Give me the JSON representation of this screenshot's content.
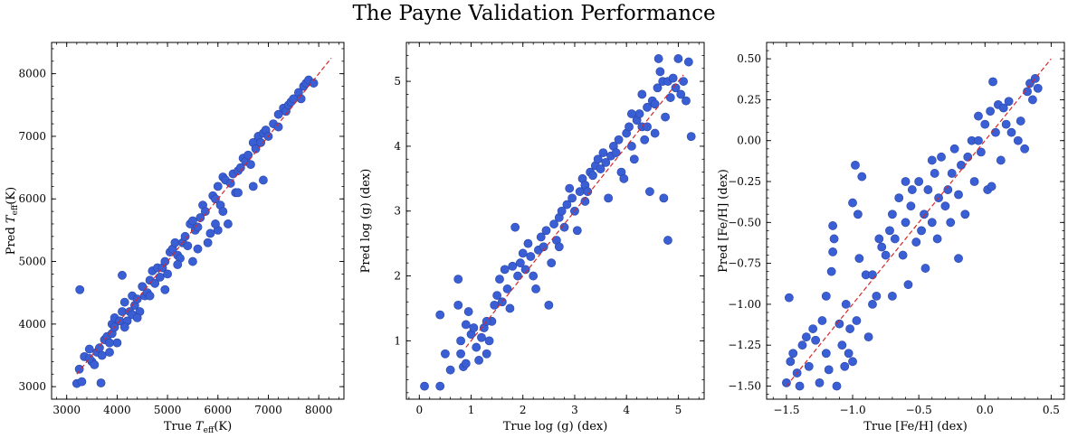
{
  "figure": {
    "title": "The Payne Validation Performance"
  },
  "colors": {
    "point": "#3a5fd4",
    "point_edge": "#2a45a8",
    "identity_line": "#d62728",
    "frame": "#000000"
  },
  "chart_data": [
    {
      "type": "scatter",
      "xlabel": "True T_eff(K)",
      "ylabel": "Pred T_eff(K)",
      "xlim": [
        2700,
        8500
      ],
      "ylim": [
        2800,
        8500
      ],
      "xticks": [
        3000,
        4000,
        5000,
        6000,
        7000,
        8000
      ],
      "yticks": [
        3000,
        4000,
        5000,
        6000,
        7000,
        8000
      ],
      "xtick_labels": [
        "3000",
        "4000",
        "5000",
        "6000",
        "7000",
        "8000"
      ],
      "ytick_labels": [
        "3000",
        "4000",
        "5000",
        "6000",
        "7000",
        "8000"
      ],
      "identity_line": [
        3200,
        8250
      ],
      "points": [
        [
          3200,
          3050
        ],
        [
          3300,
          3080
        ],
        [
          3250,
          3280
        ],
        [
          3350,
          3480
        ],
        [
          3260,
          4550
        ],
        [
          3450,
          3600
        ],
        [
          3500,
          3400
        ],
        [
          3550,
          3350
        ],
        [
          3600,
          3550
        ],
        [
          3650,
          3620
        ],
        [
          3680,
          3060
        ],
        [
          3700,
          3500
        ],
        [
          3750,
          3750
        ],
        [
          3800,
          3800
        ],
        [
          3850,
          3550
        ],
        [
          3900,
          4000
        ],
        [
          3950,
          4100
        ],
        [
          3900,
          3850
        ],
        [
          4000,
          3700
        ],
        [
          4050,
          4050
        ],
        [
          4100,
          4200
        ],
        [
          4100,
          4780
        ],
        [
          4150,
          4350
        ],
        [
          4200,
          4050
        ],
        [
          4250,
          4200
        ],
        [
          4300,
          4450
        ],
        [
          4350,
          4300
        ],
        [
          4400,
          4400
        ],
        [
          4450,
          4200
        ],
        [
          4500,
          4600
        ],
        [
          4550,
          4450
        ],
        [
          4600,
          4500
        ],
        [
          4650,
          4700
        ],
        [
          4700,
          4850
        ],
        [
          4750,
          4650
        ],
        [
          4800,
          4900
        ],
        [
          4850,
          4750
        ],
        [
          4900,
          4900
        ],
        [
          4950,
          5000
        ],
        [
          5000,
          4800
        ],
        [
          5050,
          5150
        ],
        [
          5100,
          5200
        ],
        [
          5150,
          5300
        ],
        [
          5200,
          5100
        ],
        [
          5250,
          5050
        ],
        [
          5300,
          5300
        ],
        [
          5350,
          5400
        ],
        [
          5400,
          5250
        ],
        [
          5450,
          5600
        ],
        [
          5500,
          5650
        ],
        [
          5550,
          5500
        ],
        [
          5600,
          5550
        ],
        [
          5650,
          5700
        ],
        [
          5700,
          5900
        ],
        [
          5750,
          5800
        ],
        [
          5800,
          5300
        ],
        [
          5850,
          5450
        ],
        [
          5900,
          6050
        ],
        [
          5950,
          6000
        ],
        [
          6000,
          6200
        ],
        [
          6050,
          5900
        ],
        [
          6100,
          6350
        ],
        [
          6150,
          6300
        ],
        [
          6200,
          5600
        ],
        [
          6250,
          6250
        ],
        [
          6300,
          6400
        ],
        [
          6350,
          6100
        ],
        [
          6400,
          6450
        ],
        [
          6450,
          6500
        ],
        [
          6500,
          6650
        ],
        [
          6550,
          6600
        ],
        [
          6600,
          6700
        ],
        [
          6650,
          6550
        ],
        [
          6700,
          6900
        ],
        [
          6750,
          6800
        ],
        [
          6800,
          7000
        ],
        [
          6850,
          6900
        ],
        [
          6900,
          7050
        ],
        [
          6950,
          7100
        ],
        [
          7000,
          7000
        ],
        [
          7100,
          7200
        ],
        [
          7200,
          7350
        ],
        [
          7300,
          7450
        ],
        [
          7350,
          7400
        ],
        [
          7400,
          7500
        ],
        [
          7450,
          7550
        ],
        [
          7500,
          7600
        ],
        [
          7600,
          7700
        ],
        [
          7700,
          7800
        ],
        [
          7750,
          7850
        ],
        [
          7800,
          7900
        ],
        [
          7900,
          7850
        ],
        [
          6900,
          6300
        ],
        [
          6000,
          5500
        ],
        [
          5500,
          5000
        ],
        [
          4950,
          4550
        ],
        [
          4150,
          3950
        ],
        [
          3850,
          3700
        ],
        [
          7200,
          7150
        ],
        [
          6700,
          6200
        ],
        [
          5200,
          4950
        ],
        [
          4300,
          4150
        ],
        [
          3450,
          3450
        ],
        [
          6100,
          5800
        ],
        [
          5600,
          5200
        ],
        [
          4650,
          4450
        ],
        [
          7650,
          7600
        ],
        [
          6400,
          6100
        ],
        [
          5950,
          5600
        ],
        [
          4400,
          4100
        ],
        [
          3950,
          3950
        ]
      ]
    },
    {
      "type": "scatter",
      "xlabel": "True log (g) (dex)",
      "ylabel": "Pred log (g) (dex)",
      "xlim": [
        -0.25,
        5.5
      ],
      "ylim": [
        0.1,
        5.6
      ],
      "xticks": [
        0,
        1,
        2,
        3,
        4,
        5
      ],
      "yticks": [
        1,
        2,
        3,
        4,
        5
      ],
      "xtick_labels": [
        "0",
        "1",
        "2",
        "3",
        "4",
        "5"
      ],
      "ytick_labels": [
        "1",
        "2",
        "3",
        "4",
        "5"
      ],
      "identity_line": [
        0.9,
        5.1
      ],
      "points": [
        [
          0.1,
          0.3
        ],
        [
          0.4,
          0.3
        ],
        [
          0.4,
          1.4
        ],
        [
          0.5,
          0.8
        ],
        [
          0.6,
          0.55
        ],
        [
          0.75,
          1.95
        ],
        [
          0.75,
          1.55
        ],
        [
          0.8,
          1.0
        ],
        [
          0.8,
          0.8
        ],
        [
          0.85,
          0.6
        ],
        [
          0.9,
          0.65
        ],
        [
          0.9,
          1.25
        ],
        [
          0.95,
          1.45
        ],
        [
          1.0,
          1.1
        ],
        [
          1.05,
          1.2
        ],
        [
          1.1,
          0.9
        ],
        [
          1.15,
          0.7
        ],
        [
          1.2,
          1.05
        ],
        [
          1.25,
          1.2
        ],
        [
          1.3,
          0.8
        ],
        [
          1.35,
          1.0
        ],
        [
          1.4,
          1.3
        ],
        [
          1.45,
          1.55
        ],
        [
          1.5,
          1.7
        ],
        [
          1.55,
          1.95
        ],
        [
          1.6,
          1.6
        ],
        [
          1.65,
          2.1
        ],
        [
          1.7,
          1.8
        ],
        [
          1.75,
          1.5
        ],
        [
          1.8,
          2.15
        ],
        [
          1.85,
          2.75
        ],
        [
          1.9,
          2.0
        ],
        [
          1.95,
          2.2
        ],
        [
          2.0,
          2.35
        ],
        [
          2.05,
          2.1
        ],
        [
          2.1,
          2.5
        ],
        [
          2.15,
          2.3
        ],
        [
          2.2,
          2.0
        ],
        [
          2.25,
          1.8
        ],
        [
          2.3,
          2.4
        ],
        [
          2.35,
          2.6
        ],
        [
          2.4,
          2.45
        ],
        [
          2.45,
          2.7
        ],
        [
          2.5,
          1.55
        ],
        [
          2.55,
          2.2
        ],
        [
          2.6,
          2.8
        ],
        [
          2.65,
          2.55
        ],
        [
          2.7,
          2.9
        ],
        [
          2.75,
          3.0
        ],
        [
          2.8,
          2.75
        ],
        [
          2.85,
          3.1
        ],
        [
          2.9,
          3.35
        ],
        [
          2.95,
          3.2
        ],
        [
          3.0,
          3.0
        ],
        [
          3.05,
          2.7
        ],
        [
          3.1,
          3.3
        ],
        [
          3.15,
          3.5
        ],
        [
          3.2,
          3.4
        ],
        [
          3.25,
          3.3
        ],
        [
          3.3,
          3.6
        ],
        [
          3.35,
          3.55
        ],
        [
          3.4,
          3.7
        ],
        [
          3.45,
          3.8
        ],
        [
          3.5,
          3.65
        ],
        [
          3.55,
          3.9
        ],
        [
          3.6,
          3.75
        ],
        [
          3.65,
          3.2
        ],
        [
          3.7,
          3.85
        ],
        [
          3.75,
          4.0
        ],
        [
          3.8,
          3.9
        ],
        [
          3.85,
          4.1
        ],
        [
          3.9,
          3.6
        ],
        [
          3.95,
          3.5
        ],
        [
          4.0,
          4.2
        ],
        [
          4.05,
          4.3
        ],
        [
          4.1,
          4.0
        ],
        [
          4.15,
          3.8
        ],
        [
          4.2,
          4.4
        ],
        [
          4.25,
          4.5
        ],
        [
          4.3,
          4.3
        ],
        [
          4.35,
          4.1
        ],
        [
          4.4,
          4.6
        ],
        [
          4.45,
          3.3
        ],
        [
          4.5,
          4.7
        ],
        [
          4.55,
          4.65
        ],
        [
          4.6,
          4.9
        ],
        [
          4.62,
          5.35
        ],
        [
          4.65,
          5.15
        ],
        [
          4.7,
          5.0
        ],
        [
          4.72,
          3.2
        ],
        [
          4.75,
          4.45
        ],
        [
          4.8,
          2.55
        ],
        [
          4.8,
          5.0
        ],
        [
          4.85,
          4.75
        ],
        [
          4.9,
          5.05
        ],
        [
          4.95,
          4.9
        ],
        [
          5.0,
          5.35
        ],
        [
          5.05,
          4.8
        ],
        [
          5.1,
          5.0
        ],
        [
          5.15,
          4.7
        ],
        [
          5.2,
          5.3
        ],
        [
          5.25,
          4.15
        ],
        [
          4.4,
          4.3
        ],
        [
          4.1,
          4.5
        ],
        [
          3.2,
          3.15
        ],
        [
          2.7,
          2.45
        ],
        [
          1.3,
          1.3
        ],
        [
          4.55,
          4.2
        ],
        [
          4.3,
          4.8
        ]
      ]
    },
    {
      "type": "scatter",
      "xlabel": "True [Fe/H] (dex)",
      "ylabel": "Pred [Fe/H] (dex)",
      "xlim": [
        -1.65,
        0.6
      ],
      "ylim": [
        -1.58,
        0.6
      ],
      "xticks": [
        -1.5,
        -1.0,
        -0.5,
        0.0,
        0.5
      ],
      "yticks": [
        -1.5,
        -1.25,
        -1.0,
        -0.75,
        -0.5,
        -0.25,
        0.0,
        0.25,
        0.5
      ],
      "xtick_labels": [
        "−1.5",
        "−1.0",
        "−0.5",
        "0.0",
        "0.5"
      ],
      "ytick_labels": [
        "−1.50",
        "−1.25",
        "−1.00",
        "−0.75",
        "−0.50",
        "−0.25",
        "0.00",
        "0.25",
        "0.50"
      ],
      "identity_line": [
        -1.5,
        0.5
      ],
      "points": [
        [
          -1.5,
          -1.48
        ],
        [
          -1.48,
          -0.96
        ],
        [
          -1.47,
          -1.35
        ],
        [
          -1.45,
          -1.3
        ],
        [
          -1.42,
          -1.42
        ],
        [
          -1.4,
          -1.5
        ],
        [
          -1.38,
          -1.25
        ],
        [
          -1.35,
          -1.2
        ],
        [
          -1.33,
          -1.38
        ],
        [
          -1.3,
          -1.15
        ],
        [
          -1.28,
          -1.22
        ],
        [
          -1.25,
          -1.48
        ],
        [
          -1.23,
          -1.1
        ],
        [
          -1.2,
          -1.3
        ],
        [
          -1.18,
          -1.4
        ],
        [
          -1.16,
          -0.8
        ],
        [
          -1.15,
          -0.52
        ],
        [
          -1.15,
          -0.68
        ],
        [
          -1.14,
          -0.6
        ],
        [
          -1.12,
          -1.5
        ],
        [
          -1.1,
          -1.12
        ],
        [
          -1.08,
          -1.25
        ],
        [
          -1.06,
          -1.38
        ],
        [
          -1.05,
          -1.0
        ],
        [
          -1.03,
          -1.3
        ],
        [
          -1.0,
          -1.35
        ],
        [
          -1.0,
          -0.38
        ],
        [
          -0.98,
          -0.15
        ],
        [
          -0.97,
          -1.1
        ],
        [
          -0.96,
          -0.45
        ],
        [
          -0.95,
          -0.72
        ],
        [
          -0.93,
          -0.22
        ],
        [
          -0.9,
          -0.82
        ],
        [
          -0.88,
          -1.2
        ],
        [
          -0.85,
          -0.82
        ],
        [
          -0.82,
          -0.95
        ],
        [
          -0.8,
          -0.6
        ],
        [
          -0.78,
          -0.65
        ],
        [
          -0.75,
          -0.7
        ],
        [
          -0.72,
          -0.55
        ],
        [
          -0.7,
          -0.45
        ],
        [
          -0.68,
          -0.6
        ],
        [
          -0.65,
          -0.35
        ],
        [
          -0.62,
          -0.7
        ],
        [
          -0.6,
          -0.5
        ],
        [
          -0.58,
          -0.88
        ],
        [
          -0.56,
          -0.4
        ],
        [
          -0.55,
          -0.3
        ],
        [
          -0.52,
          -0.62
        ],
        [
          -0.5,
          -0.25
        ],
        [
          -0.48,
          -0.55
        ],
        [
          -0.46,
          -0.45
        ],
        [
          -0.45,
          -0.78
        ],
        [
          -0.43,
          -0.3
        ],
        [
          -0.4,
          -0.5
        ],
        [
          -0.38,
          -0.2
        ],
        [
          -0.36,
          -0.6
        ],
        [
          -0.35,
          -0.35
        ],
        [
          -0.33,
          -0.1
        ],
        [
          -0.3,
          -0.4
        ],
        [
          -0.28,
          -0.3
        ],
        [
          -0.26,
          -0.5
        ],
        [
          -0.25,
          -0.2
        ],
        [
          -0.23,
          -0.05
        ],
        [
          -0.2,
          -0.33
        ],
        [
          -0.18,
          -0.15
        ],
        [
          -0.15,
          -0.45
        ],
        [
          -0.13,
          -0.1
        ],
        [
          -0.1,
          0.0
        ],
        [
          -0.08,
          -0.25
        ],
        [
          -0.05,
          0.15
        ],
        [
          -0.03,
          -0.07
        ],
        [
          0.0,
          0.1
        ],
        [
          0.02,
          -0.3
        ],
        [
          0.04,
          0.18
        ],
        [
          0.06,
          0.36
        ],
        [
          0.08,
          0.05
        ],
        [
          0.1,
          0.22
        ],
        [
          0.12,
          -0.12
        ],
        [
          0.14,
          0.2
        ],
        [
          0.16,
          0.1
        ],
        [
          0.18,
          0.24
        ],
        [
          0.2,
          0.05
        ],
        [
          0.25,
          0.0
        ],
        [
          0.27,
          0.12
        ],
        [
          0.3,
          -0.05
        ],
        [
          0.32,
          0.3
        ],
        [
          0.34,
          0.35
        ],
        [
          0.36,
          0.25
        ],
        [
          0.38,
          0.38
        ],
        [
          0.4,
          0.32
        ],
        [
          -0.6,
          -0.25
        ],
        [
          -0.85,
          -1.0
        ],
        [
          -1.02,
          -1.15
        ],
        [
          -0.2,
          -0.72
        ],
        [
          -1.2,
          -0.95
        ],
        [
          0.05,
          -0.28
        ],
        [
          -0.7,
          -0.95
        ],
        [
          -0.05,
          0.0
        ],
        [
          -0.4,
          -0.12
        ]
      ]
    }
  ]
}
